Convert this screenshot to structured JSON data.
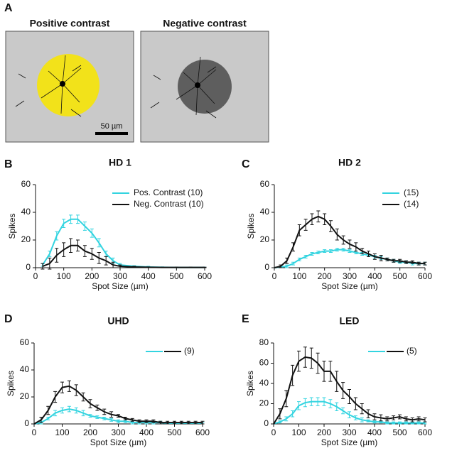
{
  "panel_labels": [
    "A",
    "B",
    "C",
    "D",
    "E"
  ],
  "panel_a": {
    "left_title": "Positive contrast",
    "right_title": "Negative contrast",
    "scale_bar": "50 µm"
  },
  "chart_data": [
    {
      "type": "line",
      "title": "HD 1",
      "ylabel": "Spikes",
      "xlabel": "Spot Size (µm)",
      "xlim": [
        0,
        600
      ],
      "xticks": [
        0,
        100,
        200,
        300,
        400,
        500,
        600
      ],
      "ylim": [
        0,
        60
      ],
      "yticks": [
        0,
        20,
        40,
        60
      ],
      "x": [
        25,
        50,
        75,
        100,
        125,
        150,
        175,
        200,
        225,
        250,
        275,
        300,
        350,
        400,
        450,
        500,
        550,
        600
      ],
      "series": [
        {
          "name": "Pos. Contrast  (10)",
          "color": "#33d4e0",
          "values": [
            2,
            10,
            23,
            32,
            35,
            35,
            30,
            25,
            18,
            10,
            5,
            2,
            1,
            0.5,
            0.3,
            0.2,
            0.2,
            0.2
          ],
          "errors": [
            1,
            2,
            3,
            3,
            3,
            3,
            3,
            3,
            3,
            2,
            2,
            1,
            0.5,
            0.5,
            0.3,
            0.2,
            0.2,
            0.2
          ]
        },
        {
          "name": "Neg. Contrast (10)",
          "color": "#111111",
          "values": [
            1,
            3,
            9,
            13,
            16,
            16,
            12,
            10,
            7,
            5,
            2,
            1,
            0.5,
            0.3,
            0.2,
            0.2,
            0.2,
            0.2
          ],
          "errors": [
            2,
            4,
            5,
            5,
            5,
            4,
            4,
            4,
            4,
            3,
            2,
            1,
            0.5,
            0.3,
            0.2,
            0.2,
            0.2,
            0.2
          ]
        }
      ]
    },
    {
      "type": "line",
      "title": "HD 2",
      "ylabel": "Spikes",
      "xlabel": "Spot Size (µm)",
      "xlim": [
        0,
        600
      ],
      "xticks": [
        0,
        100,
        200,
        300,
        400,
        500,
        600
      ],
      "ylim": [
        0,
        60
      ],
      "yticks": [
        0,
        20,
        40,
        60
      ],
      "x": [
        0,
        25,
        50,
        75,
        100,
        125,
        150,
        175,
        200,
        225,
        250,
        275,
        300,
        325,
        350,
        375,
        400,
        425,
        450,
        475,
        500,
        525,
        550,
        575,
        600
      ],
      "series": [
        {
          "name": "(15)",
          "color": "#33d4e0",
          "values": [
            0,
            0.5,
            1,
            3,
            6,
            8,
            10,
            11,
            12,
            12,
            13,
            13,
            12,
            11,
            10,
            9,
            8,
            7,
            6,
            5,
            4,
            4,
            3,
            3,
            3
          ],
          "errors": [
            0,
            0.5,
            1,
            1,
            1,
            1,
            1,
            1,
            1,
            1,
            1,
            1,
            1,
            1,
            1,
            1,
            1,
            1,
            1,
            1,
            1,
            1,
            1,
            1,
            1
          ]
        },
        {
          "name": "(14)",
          "color": "#111111",
          "values": [
            0,
            1,
            5,
            15,
            27,
            31,
            35,
            37,
            35,
            30,
            24,
            20,
            17,
            15,
            12,
            10,
            8,
            7,
            6,
            5,
            5,
            4,
            4,
            3,
            3
          ],
          "errors": [
            0,
            1,
            2,
            3,
            4,
            4,
            4,
            4,
            4,
            4,
            4,
            3,
            3,
            3,
            2,
            2,
            2,
            2,
            1,
            1,
            1,
            1,
            1,
            1,
            1
          ]
        }
      ]
    },
    {
      "type": "line",
      "title": "UHD",
      "ylabel": "Spikes",
      "xlabel": "Spot Size (µm)",
      "legend_label": "(9)",
      "xlim": [
        0,
        600
      ],
      "xticks": [
        0,
        100,
        200,
        300,
        400,
        500,
        600
      ],
      "ylim": [
        0,
        60
      ],
      "yticks": [
        0,
        20,
        40,
        60
      ],
      "x": [
        0,
        25,
        50,
        75,
        100,
        125,
        150,
        175,
        200,
        225,
        250,
        275,
        300,
        325,
        350,
        375,
        400,
        425,
        450,
        475,
        500,
        525,
        550,
        575,
        600
      ],
      "series": [
        {
          "color": "#33d4e0",
          "values": [
            0,
            1,
            4,
            8,
            10,
            11,
            10,
            8,
            6,
            5,
            4,
            3,
            2,
            2,
            1,
            1,
            1,
            1,
            1,
            0.5,
            0.5,
            0.5,
            0.5,
            0.5,
            0.5
          ],
          "errors": [
            0,
            1,
            1,
            2,
            2,
            2,
            2,
            2,
            1,
            1,
            1,
            1,
            1,
            1,
            1,
            1,
            1,
            1,
            1,
            0.5,
            0.5,
            0.5,
            0.5,
            0.5,
            0.5
          ]
        },
        {
          "color": "#111111",
          "values": [
            0,
            3,
            10,
            20,
            27,
            28,
            25,
            20,
            15,
            12,
            9,
            7,
            6,
            4,
            3,
            2,
            2,
            2,
            1,
            1,
            1,
            1,
            1,
            1,
            1
          ],
          "errors": [
            0,
            2,
            3,
            4,
            4,
            4,
            4,
            3,
            3,
            2,
            2,
            2,
            1,
            1,
            1,
            1,
            1,
            1,
            1,
            1,
            1,
            1,
            1,
            1,
            1
          ]
        }
      ]
    },
    {
      "type": "line",
      "title": "LED",
      "ylabel": "Spikes",
      "xlabel": "Spot Size (µm)",
      "legend_label": "(5)",
      "xlim": [
        0,
        600
      ],
      "xticks": [
        0,
        100,
        200,
        300,
        400,
        500,
        600
      ],
      "ylim": [
        0,
        80
      ],
      "yticks": [
        0,
        20,
        40,
        60,
        80
      ],
      "x": [
        0,
        25,
        50,
        75,
        100,
        125,
        150,
        175,
        200,
        225,
        250,
        275,
        300,
        325,
        350,
        375,
        400,
        425,
        450,
        475,
        500,
        525,
        550,
        575,
        600
      ],
      "series": [
        {
          "color": "#33d4e0",
          "values": [
            0,
            2,
            5,
            10,
            18,
            21,
            22,
            22,
            22,
            20,
            17,
            13,
            9,
            6,
            4,
            3,
            2,
            2,
            1,
            1,
            1,
            1,
            1,
            1,
            1
          ],
          "errors": [
            0,
            1,
            2,
            3,
            4,
            4,
            4,
            4,
            4,
            4,
            4,
            3,
            3,
            2,
            2,
            1,
            1,
            1,
            1,
            1,
            1,
            1,
            1,
            1,
            1
          ]
        },
        {
          "color": "#111111",
          "values": [
            0,
            10,
            25,
            48,
            62,
            66,
            65,
            60,
            52,
            52,
            42,
            33,
            27,
            20,
            15,
            10,
            7,
            6,
            5,
            6,
            7,
            5,
            4,
            5,
            4
          ],
          "errors": [
            0,
            5,
            8,
            10,
            10,
            10,
            10,
            10,
            10,
            10,
            10,
            8,
            7,
            6,
            5,
            4,
            3,
            3,
            2,
            2,
            2,
            2,
            2,
            2,
            2
          ]
        }
      ]
    }
  ]
}
